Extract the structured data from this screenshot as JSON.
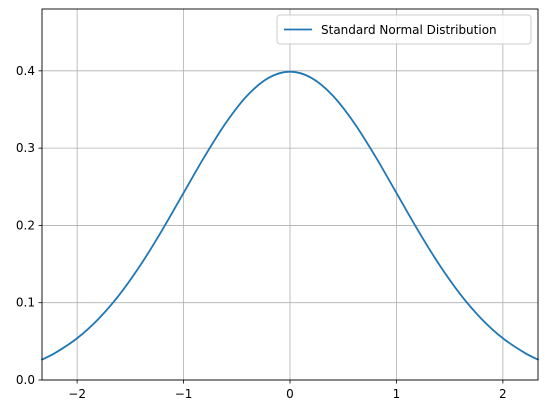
{
  "chart_data": {
    "type": "line",
    "title": "",
    "xlabel": "",
    "ylabel": "",
    "xlim": [
      -2.33,
      2.33
    ],
    "ylim": [
      0.0,
      0.48
    ],
    "x_ticks": [
      -2,
      -1,
      0,
      1,
      2
    ],
    "x_tick_labels": [
      "−2",
      "−1",
      "0",
      "1",
      "2"
    ],
    "y_ticks": [
      0.0,
      0.1,
      0.2,
      0.3,
      0.4
    ],
    "y_tick_labels": [
      "0.0",
      "0.1",
      "0.2",
      "0.3",
      "0.4"
    ],
    "grid": true,
    "legend_position": "upper right",
    "series": [
      {
        "name": "Standard Normal Distribution",
        "color": "#1f77b4",
        "x": [
          -2.33,
          -2.2,
          -2.0,
          -1.8,
          -1.6,
          -1.4,
          -1.2,
          -1.0,
          -0.8,
          -0.6,
          -0.4,
          -0.2,
          0.0,
          0.2,
          0.4,
          0.6,
          0.8,
          1.0,
          1.2,
          1.4,
          1.6,
          1.8,
          2.0,
          2.2,
          2.33
        ],
        "y": [
          0.0264,
          0.0355,
          0.054,
          0.079,
          0.1109,
          0.1497,
          0.1942,
          0.242,
          0.2897,
          0.3332,
          0.3683,
          0.391,
          0.3989,
          0.391,
          0.3683,
          0.3332,
          0.2897,
          0.242,
          0.1942,
          0.1497,
          0.1109,
          0.079,
          0.054,
          0.0355,
          0.0264
        ]
      }
    ]
  }
}
